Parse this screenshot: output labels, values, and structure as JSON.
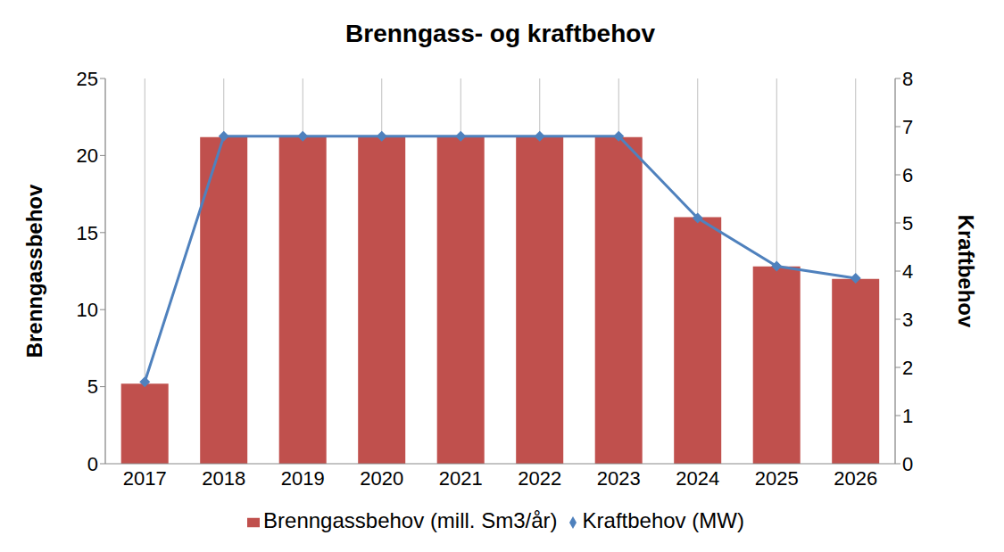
{
  "chart_data": {
    "type": "bar",
    "title": "Brenngass- og kraftbehov",
    "categories": [
      "2017",
      "2018",
      "2019",
      "2020",
      "2021",
      "2022",
      "2023",
      "2024",
      "2025",
      "2026"
    ],
    "y_label": "Brenngassbehov",
    "y2_label": "Kraftbehov",
    "ylim": [
      0,
      25
    ],
    "yticks": [
      0,
      5,
      10,
      15,
      20,
      25
    ],
    "y2lim": [
      0,
      8
    ],
    "y2ticks": [
      0,
      1,
      2,
      3,
      4,
      5,
      6,
      7,
      8
    ],
    "grid": true,
    "legend": "bottom",
    "series": [
      {
        "name": "Brenngassbehov (mill. Sm3/år)",
        "type": "bar",
        "color": "#c0504d",
        "values": [
          5.2,
          21.2,
          21.2,
          21.2,
          21.2,
          21.2,
          21.2,
          16.0,
          12.8,
          12.0
        ]
      },
      {
        "name": "Kraftbehov (MW)",
        "type": "line",
        "axis": "y2",
        "color": "#4f81bd",
        "marker": "diamond",
        "line_style": "solid",
        "values": [
          1.7,
          6.8,
          6.8,
          6.8,
          6.8,
          6.8,
          6.8,
          5.1,
          4.1,
          3.85
        ]
      }
    ]
  }
}
